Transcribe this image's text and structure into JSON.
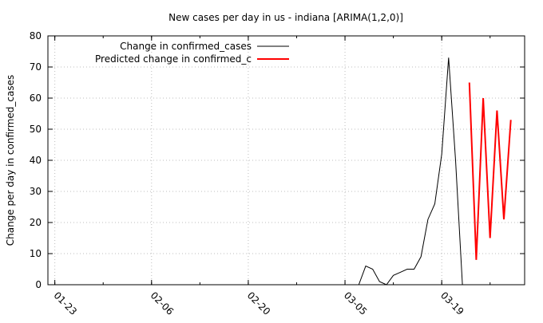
{
  "chart_data": {
    "type": "line",
    "title": "New cases per day in us - indiana [ARIMA(1,2,0)]",
    "xlabel": "",
    "ylabel": "Change per day in confirmed_cases",
    "x_ticks": [
      "01-23",
      "02-06",
      "02-20",
      "03-05",
      "03-19"
    ],
    "x_range": [
      "01-22",
      "03-31"
    ],
    "y_ticks": [
      0,
      10,
      20,
      30,
      40,
      50,
      60,
      70,
      80
    ],
    "ylim": [
      0,
      80
    ],
    "grid": true,
    "legend_position": "top-left",
    "series": [
      {
        "name": "Change in confirmed_cases",
        "color": "#000000",
        "x": [
          "03-04",
          "03-05",
          "03-06",
          "03-07",
          "03-08",
          "03-09",
          "03-10",
          "03-11",
          "03-12",
          "03-13",
          "03-14",
          "03-15",
          "03-16",
          "03-17",
          "03-18",
          "03-19",
          "03-20",
          "03-21",
          "03-22"
        ],
        "values": [
          0,
          0,
          0,
          0,
          6,
          5,
          1,
          0,
          3,
          4,
          5,
          5,
          9,
          21,
          26,
          42,
          73,
          40,
          0
        ]
      },
      {
        "name": "Predicted change in confirmed_c",
        "color": "#ff0000",
        "x": [
          "03-23",
          "03-24",
          "03-25",
          "03-26",
          "03-27",
          "03-28",
          "03-29"
        ],
        "values": [
          65,
          8,
          60,
          15,
          56,
          21,
          53
        ]
      }
    ]
  }
}
